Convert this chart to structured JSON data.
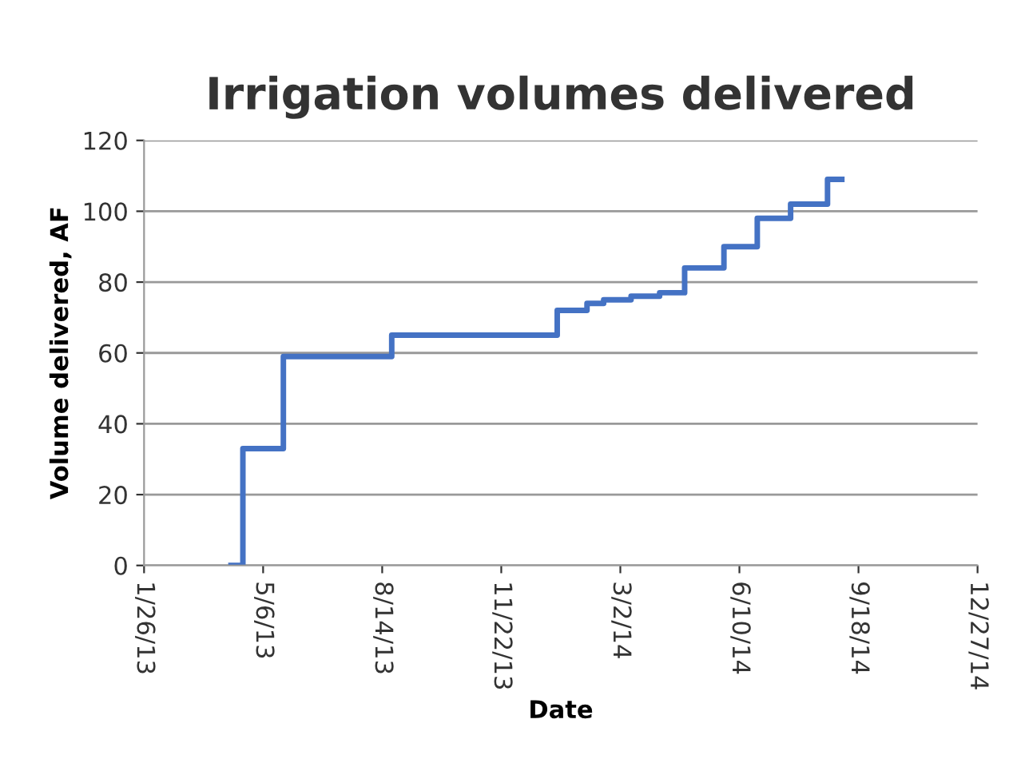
{
  "chart_data": {
    "type": "step",
    "title": "Irrigation volumes delivered",
    "xlabel": "Date",
    "ylabel": "Volume delivered, AF",
    "x": [
      "2013-04-09",
      "2013-04-19",
      "2013-05-23",
      "2013-08-22",
      "2014-01-08",
      "2014-01-20",
      "2014-02-02",
      "2014-02-16",
      "2014-03-11",
      "2014-04-04",
      "2014-04-25",
      "2014-05-28",
      "2014-06-25",
      "2014-07-23",
      "2014-08-23",
      "2014-09-04"
    ],
    "series": [
      {
        "color": "#4472c4",
        "values": [
          0,
          33,
          59,
          65,
          72,
          72,
          74,
          75,
          76,
          77,
          84,
          90,
          98,
          102,
          109,
          109
        ]
      }
    ],
    "xlim": [
      "2013-01-26",
      "2014-12-27"
    ],
    "xticks": [
      {
        "value": "2013-01-26",
        "label": "1/26/13"
      },
      {
        "value": "2013-05-06",
        "label": "5/6/13"
      },
      {
        "value": "2013-08-14",
        "label": "8/14/13"
      },
      {
        "value": "2013-11-22",
        "label": "11/22/13"
      },
      {
        "value": "2014-03-02",
        "label": "3/2/14"
      },
      {
        "value": "2014-06-10",
        "label": "6/10/14"
      },
      {
        "value": "2014-09-18",
        "label": "9/18/14"
      },
      {
        "value": "2014-12-27",
        "label": "12/27/14"
      }
    ],
    "ylim": [
      0,
      120
    ],
    "yticks": [
      0,
      20,
      40,
      60,
      80,
      100,
      120
    ],
    "grid": "y",
    "legend": false
  }
}
